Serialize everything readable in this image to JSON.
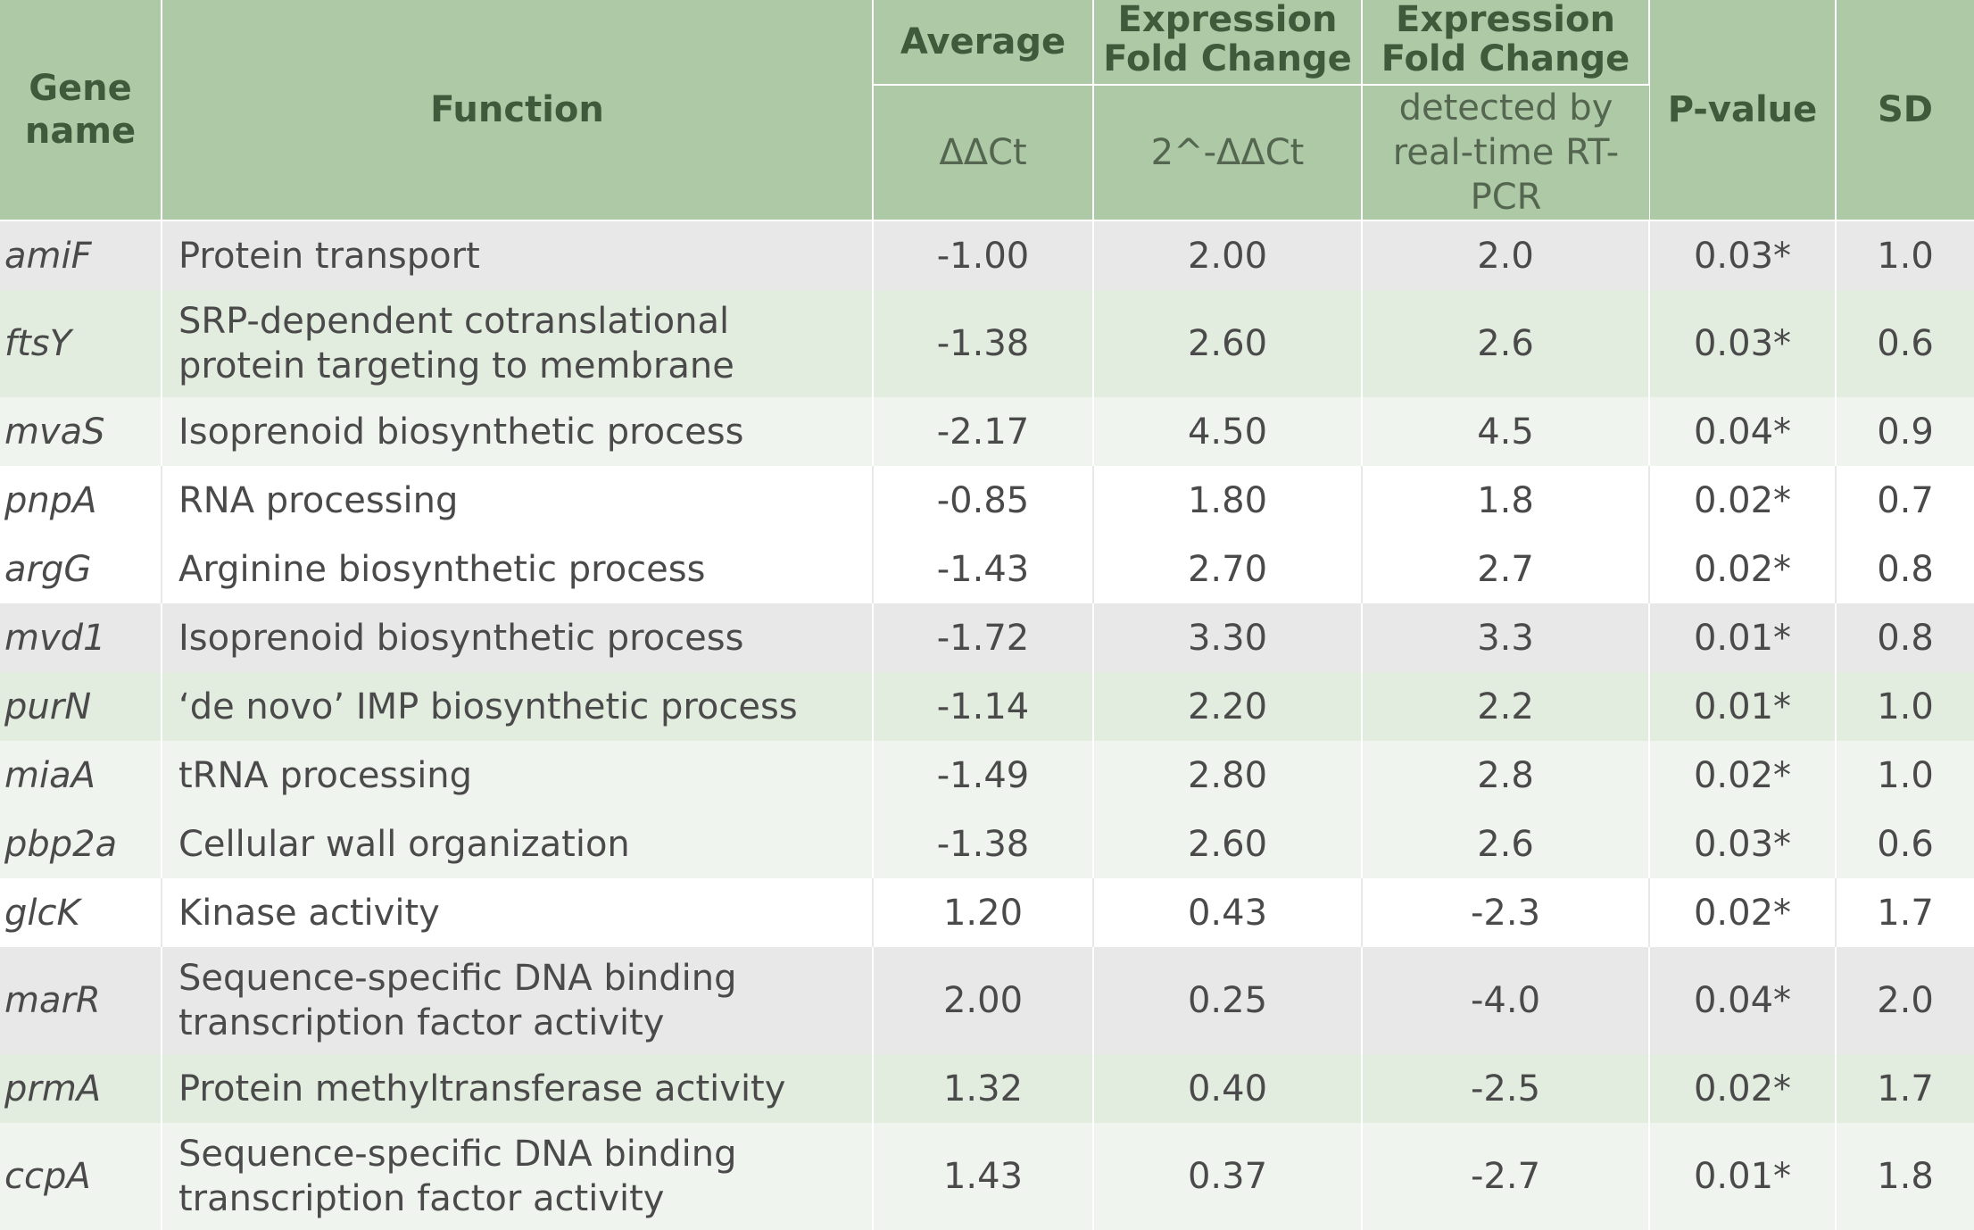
{
  "header": {
    "gene_name": "Gene name",
    "function": "Function",
    "average": "Average",
    "average_unit": "ΔΔCt",
    "efc1_title": "Expression Fold Change",
    "efc1_unit": "2^-ΔΔCt",
    "efc2_title": "Expression Fold Change",
    "efc2_unit": "detected by real-time RT-PCR",
    "pvalue": "P-value",
    "sd": "SD"
  },
  "rows": [
    {
      "gene": "amiF",
      "function": "Protein transport",
      "ddct": "-1.00",
      "fold": "2.00",
      "rtpcr": "2.0",
      "p": "0.03*",
      "sd": "1.0"
    },
    {
      "gene": "ftsY",
      "function": "SRP-dependent cotranslational protein targeting to membrane",
      "ddct": "-1.38",
      "fold": "2.60",
      "rtpcr": "2.6",
      "p": "0.03*",
      "sd": "0.6"
    },
    {
      "gene": "mvaS",
      "function": "Isoprenoid biosynthetic process",
      "ddct": "-2.17",
      "fold": "4.50",
      "rtpcr": "4.5",
      "p": "0.04*",
      "sd": "0.9"
    },
    {
      "gene": "pnpA",
      "function": "RNA processing",
      "ddct": "-0.85",
      "fold": "1.80",
      "rtpcr": "1.8",
      "p": "0.02*",
      "sd": "0.7"
    },
    {
      "gene": "argG",
      "function": "Arginine biosynthetic process",
      "ddct": "-1.43",
      "fold": "2.70",
      "rtpcr": "2.7",
      "p": "0.02*",
      "sd": "0.8"
    },
    {
      "gene": "mvd1",
      "function": "Isoprenoid biosynthetic process",
      "ddct": "-1.72",
      "fold": "3.30",
      "rtpcr": "3.3",
      "p": "0.01*",
      "sd": "0.8"
    },
    {
      "gene": "purN",
      "function": "‘de novo’ IMP biosynthetic process",
      "ddct": "-1.14",
      "fold": "2.20",
      "rtpcr": "2.2",
      "p": "0.01*",
      "sd": "1.0"
    },
    {
      "gene": "miaA",
      "function": "tRNA processing",
      "ddct": "-1.49",
      "fold": "2.80",
      "rtpcr": "2.8",
      "p": "0.02*",
      "sd": "1.0"
    },
    {
      "gene": "pbp2a",
      "function": "Cellular wall organization",
      "ddct": "-1.38",
      "fold": "2.60",
      "rtpcr": "2.6",
      "p": "0.03*",
      "sd": "0.6"
    },
    {
      "gene": "glcK",
      "function": "Kinase activity",
      "ddct": "1.20",
      "fold": "0.43",
      "rtpcr": "-2.3",
      "p": "0.02*",
      "sd": "1.7"
    },
    {
      "gene": "marR",
      "function": "Sequence-specific DNA binding transcription factor activity",
      "ddct": "2.00",
      "fold": "0.25",
      "rtpcr": "-4.0",
      "p": "0.04*",
      "sd": "2.0"
    },
    {
      "gene": "prmA",
      "function": "Protein methyltransferase activity",
      "ddct": "1.32",
      "fold": "0.40",
      "rtpcr": "-2.5",
      "p": "0.02*",
      "sd": "1.7"
    },
    {
      "gene": "ccpA",
      "function": "Sequence-specific DNA binding transcription factor activity",
      "ddct": "1.43",
      "fold": "0.37",
      "rtpcr": "-2.7",
      "p": "0.01*",
      "sd": "1.8"
    }
  ]
}
